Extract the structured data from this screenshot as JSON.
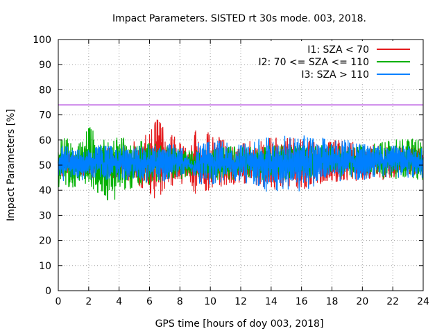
{
  "chart_data": {
    "type": "line",
    "title": "Impact Parameters. SISTED rt 30s mode. 003, 2018.",
    "xlabel": "GPS time [hours of doy 003, 2018]",
    "ylabel": "Impact Parameters [%]",
    "xlim": [
      0,
      24
    ],
    "ylim": [
      0,
      100
    ],
    "x_ticks": [
      0,
      2,
      4,
      6,
      8,
      10,
      12,
      14,
      16,
      18,
      20,
      22,
      24
    ],
    "y_ticks": [
      0,
      10,
      20,
      30,
      40,
      50,
      60,
      70,
      80,
      90,
      100
    ],
    "x_tick_labels": [
      "0",
      "2",
      "4",
      "6",
      "8",
      "10",
      "12",
      "14",
      "16",
      "18",
      "20",
      "22",
      "24"
    ],
    "y_tick_labels": [
      "0",
      "10",
      "20",
      "30",
      "40",
      "50",
      "60",
      "70",
      "80",
      "90",
      "100"
    ],
    "grid": true,
    "legend_position": "top-right",
    "reference_line": {
      "y": 74,
      "color": "#9400d3"
    },
    "series": [
      {
        "name": "I1: SZA < 70",
        "color": "#e41a1c",
        "x": [
          0.0,
          1.0,
          2.0,
          3.0,
          4.0,
          5.0,
          6.0,
          6.5,
          7.0,
          8.0,
          8.6,
          9.0,
          10.0,
          11.0,
          12.0,
          13.0,
          14.0,
          15.0,
          16.0,
          17.0,
          18.0,
          19.0,
          20.0,
          21.0,
          22.0,
          23.0,
          24.0
        ],
        "center": [
          50,
          50,
          50,
          50,
          50,
          50,
          50,
          50,
          50,
          51,
          49,
          48,
          50,
          51,
          51,
          51,
          50,
          51,
          51,
          50,
          52,
          52,
          51,
          51,
          51,
          52,
          51
        ],
        "upper": [
          56,
          56,
          57,
          57,
          57,
          60,
          63,
          69,
          64,
          60,
          56,
          64,
          63,
          60,
          59,
          60,
          62,
          61,
          61,
          59,
          60,
          60,
          58,
          59,
          58,
          58,
          57
        ],
        "lower": [
          45,
          45,
          45,
          44,
          44,
          42,
          38,
          35,
          40,
          42,
          44,
          38,
          40,
          42,
          42,
          42,
          40,
          41,
          40,
          42,
          43,
          43,
          44,
          44,
          44,
          45,
          45
        ]
      },
      {
        "name": "I2: 70 <= SZA <= 110",
        "color": "#00b000",
        "x": [
          0.0,
          0.5,
          1.0,
          1.5,
          2.0,
          2.5,
          3.0,
          3.5,
          4.0,
          4.5,
          5.0,
          5.5,
          6.0,
          7.0,
          8.0,
          9.0,
          10.0,
          12.0,
          14.0,
          16.0,
          18.0,
          20.0,
          22.0,
          23.0,
          24.0
        ],
        "center": [
          50,
          51,
          51,
          51,
          51,
          50,
          50,
          51,
          51,
          51,
          51,
          51,
          51,
          51,
          51,
          49,
          51,
          51,
          51,
          52,
          52,
          52,
          51,
          51,
          51
        ],
        "upper": [
          60,
          61,
          63,
          62,
          66,
          62,
          61,
          60,
          62,
          61,
          60,
          60,
          59,
          58,
          57,
          56,
          57,
          58,
          58,
          58,
          58,
          58,
          60,
          61,
          60
        ],
        "lower": [
          40,
          41,
          40,
          41,
          42,
          39,
          38,
          33,
          40,
          40,
          41,
          42,
          42,
          43,
          44,
          46,
          44,
          44,
          44,
          44,
          45,
          45,
          44,
          44,
          44
        ]
      },
      {
        "name": "I3: SZA > 110",
        "color": "#0080ff",
        "x": [
          0.0,
          1.0,
          2.0,
          3.0,
          4.0,
          5.0,
          6.0,
          7.0,
          8.0,
          8.6,
          8.9,
          9.2,
          10.0,
          11.0,
          12.0,
          13.0,
          14.0,
          15.0,
          16.0,
          17.0,
          18.0,
          19.0,
          20.0,
          21.0,
          22.0,
          23.0,
          24.0
        ],
        "center": [
          50,
          51,
          51,
          51,
          51,
          51,
          51,
          51,
          52,
          51,
          47,
          51,
          51,
          51,
          51,
          51,
          51,
          51,
          51,
          51,
          52,
          52,
          52,
          52,
          52,
          52,
          51
        ],
        "upper": [
          58,
          58,
          58,
          58,
          58,
          58,
          59,
          59,
          58,
          54,
          50,
          59,
          60,
          60,
          59,
          60,
          62,
          62,
          62,
          61,
          61,
          60,
          59,
          59,
          58,
          58,
          57
        ],
        "lower": [
          43,
          44,
          44,
          44,
          44,
          44,
          43,
          43,
          45,
          48,
          45,
          42,
          42,
          43,
          43,
          42,
          38,
          40,
          38,
          41,
          43,
          44,
          44,
          45,
          45,
          45,
          45
        ]
      }
    ]
  }
}
